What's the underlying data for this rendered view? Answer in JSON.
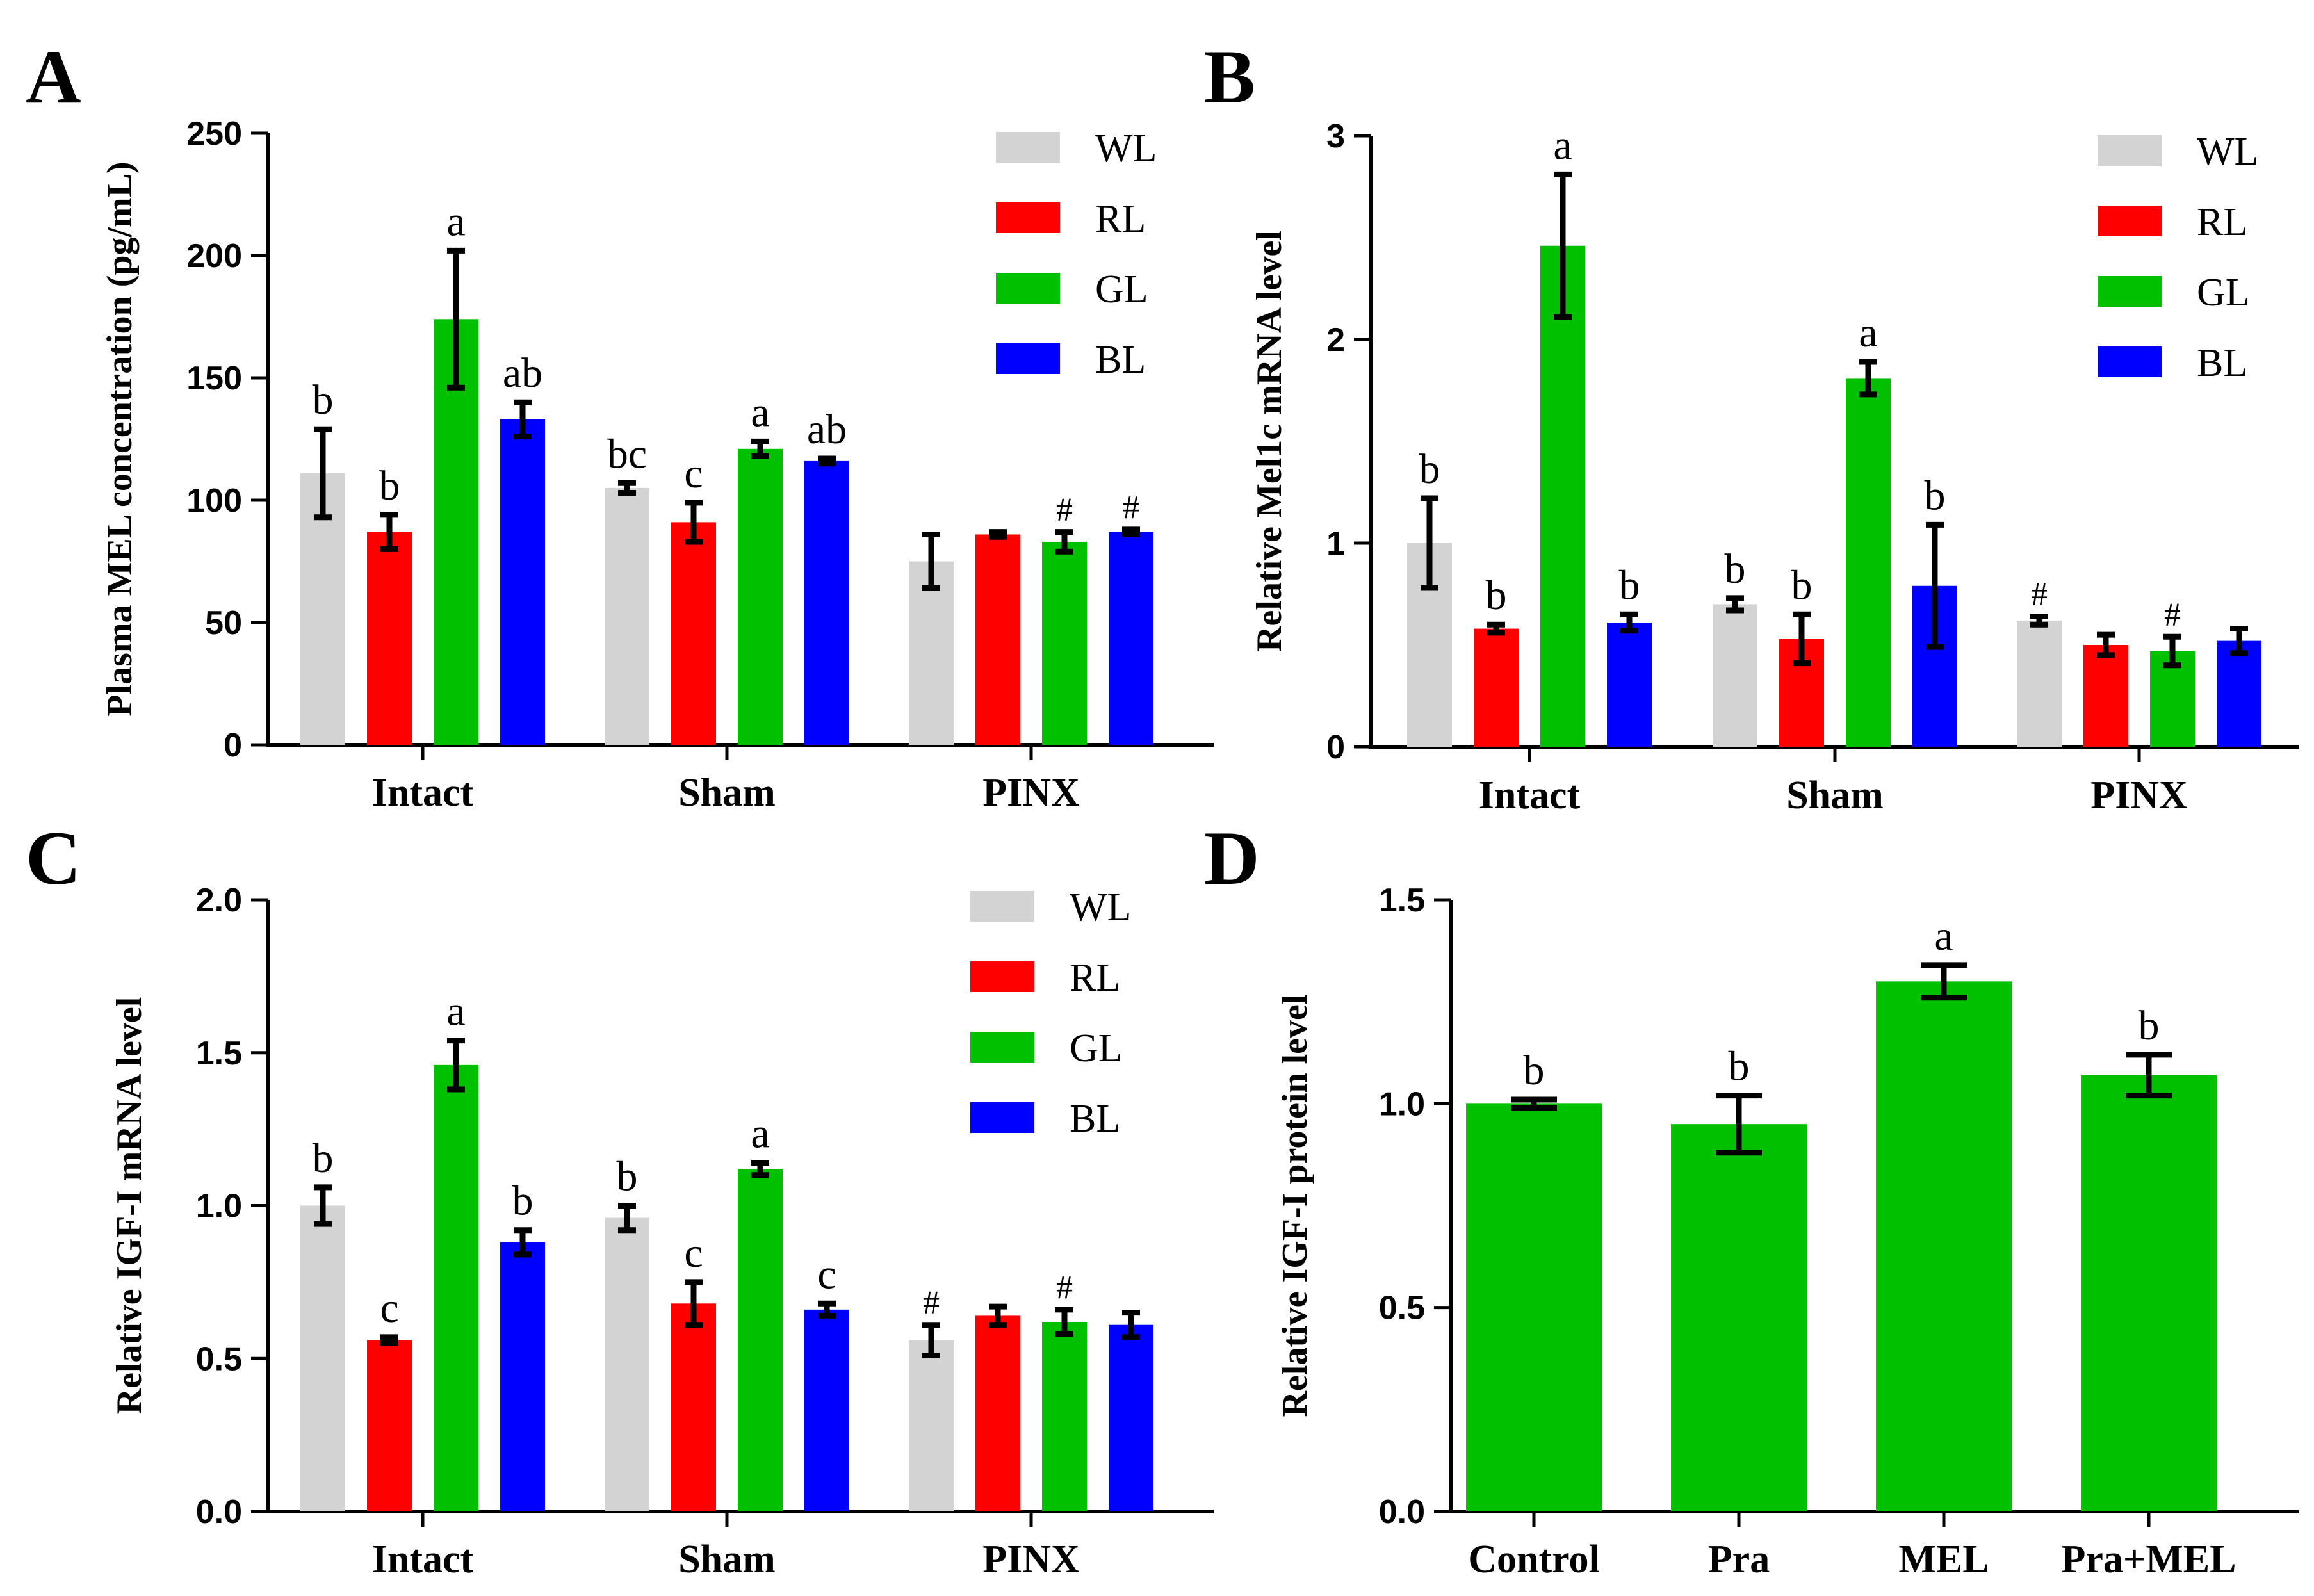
{
  "chart_data": [
    {
      "panel": "A",
      "type": "bar",
      "ylabel": "Plasma MEL concentration (pg/mL)",
      "ylim": [
        0,
        250
      ],
      "yticks": [
        0,
        50,
        100,
        150,
        200,
        250
      ],
      "categories": [
        "Intact",
        "Sham",
        "PINX"
      ],
      "series": [
        {
          "name": "WL",
          "color": "#d3d3d3",
          "values": [
            111,
            105,
            75
          ],
          "errors": [
            18,
            2,
            11
          ],
          "labels": [
            "b",
            "bc",
            ""
          ]
        },
        {
          "name": "RL",
          "color": "#ff0000",
          "values": [
            87,
            91,
            86
          ],
          "errors": [
            7,
            8,
            1
          ],
          "labels": [
            "b",
            "c",
            ""
          ]
        },
        {
          "name": "GL",
          "color": "#00c000",
          "values": [
            174,
            121,
            83
          ],
          "errors": [
            28,
            3,
            4
          ],
          "labels": [
            "a",
            "a",
            "#"
          ]
        },
        {
          "name": "BL",
          "color": "#0000ff",
          "values": [
            133,
            116,
            87
          ],
          "errors": [
            7,
            1,
            1
          ],
          "labels": [
            "ab",
            "ab",
            "#"
          ]
        }
      ]
    },
    {
      "panel": "B",
      "type": "bar",
      "ylabel": "Relative Mel1c mRNA level",
      "ylim": [
        0,
        3
      ],
      "yticks": [
        0,
        1,
        2,
        3
      ],
      "categories": [
        "Intact",
        "Sham",
        "PINX"
      ],
      "series": [
        {
          "name": "WL",
          "color": "#d3d3d3",
          "values": [
            1.0,
            0.7,
            0.62
          ],
          "errors": [
            0.22,
            0.03,
            0.02
          ],
          "labels": [
            "b",
            "b",
            "#"
          ]
        },
        {
          "name": "RL",
          "color": "#ff0000",
          "values": [
            0.58,
            0.53,
            0.5
          ],
          "errors": [
            0.02,
            0.12,
            0.05
          ],
          "labels": [
            "b",
            "b",
            ""
          ]
        },
        {
          "name": "GL",
          "color": "#00c000",
          "values": [
            2.46,
            1.81,
            0.47
          ],
          "errors": [
            0.35,
            0.08,
            0.07
          ],
          "labels": [
            "a",
            "a",
            "#"
          ]
        },
        {
          "name": "BL",
          "color": "#0000ff",
          "values": [
            0.61,
            0.79,
            0.52
          ],
          "errors": [
            0.04,
            0.3,
            0.06
          ],
          "labels": [
            "b",
            "b",
            ""
          ]
        }
      ]
    },
    {
      "panel": "C",
      "type": "bar",
      "ylabel": "Relative IGF-I mRNA level",
      "ylim": [
        0,
        2
      ],
      "yticks": [
        "0.0",
        "0.5",
        "1.0",
        "1.5",
        "2.0"
      ],
      "categories": [
        "Intact",
        "Sham",
        "PINX"
      ],
      "series": [
        {
          "name": "WL",
          "color": "#d3d3d3",
          "values": [
            1.0,
            0.96,
            0.56
          ],
          "errors": [
            0.06,
            0.04,
            0.05
          ],
          "labels": [
            "b",
            "b",
            "#"
          ]
        },
        {
          "name": "RL",
          "color": "#ff0000",
          "values": [
            0.56,
            0.68,
            0.64
          ],
          "errors": [
            0.01,
            0.07,
            0.03
          ],
          "labels": [
            "c",
            "c",
            ""
          ]
        },
        {
          "name": "GL",
          "color": "#00c000",
          "values": [
            1.46,
            1.12,
            0.62
          ],
          "errors": [
            0.08,
            0.02,
            0.04
          ],
          "labels": [
            "a",
            "a",
            "#"
          ]
        },
        {
          "name": "BL",
          "color": "#0000ff",
          "values": [
            0.88,
            0.66,
            0.61
          ],
          "errors": [
            0.04,
            0.02,
            0.04
          ],
          "labels": [
            "b",
            "c",
            ""
          ]
        }
      ]
    },
    {
      "panel": "D",
      "type": "bar",
      "ylabel": "Relative IGF-I protein  level",
      "ylim": [
        0,
        1.5
      ],
      "yticks": [
        "0.0",
        "0.5",
        "1.0",
        "1.5"
      ],
      "categories": [
        "Control",
        "Pra",
        "MEL",
        "Pra+MEL"
      ],
      "series": [
        {
          "name": "",
          "color": "#00c000",
          "values": [
            1.0,
            0.95,
            1.3,
            1.07
          ],
          "errors": [
            0.01,
            0.07,
            0.04,
            0.05
          ],
          "labels": [
            "b",
            "b",
            "a",
            "b"
          ]
        }
      ]
    }
  ]
}
